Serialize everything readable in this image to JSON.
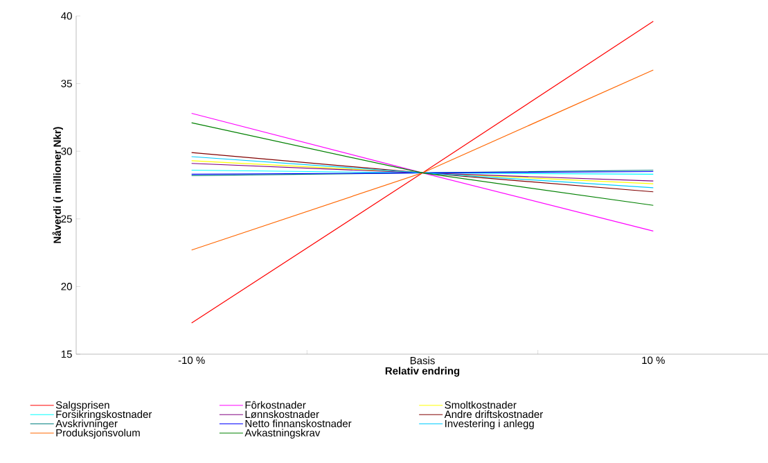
{
  "chart_data": {
    "type": "line",
    "xlabel": "Relativ endring",
    "ylabel": "Nåverdi (i millioner Nkr)",
    "categories": [
      "-10 %",
      "Basis",
      "10 %"
    ],
    "ylim": [
      15,
      40
    ],
    "yticks": [
      15,
      20,
      25,
      30,
      35,
      40
    ],
    "grid": false,
    "legend": "bottom",
    "marker": "none",
    "line_style": "solid",
    "series": [
      {
        "name": "Salgsprisen",
        "color": "#ff0000",
        "values": [
          17.3,
          28.4,
          39.6
        ]
      },
      {
        "name": "Fôrkostnader",
        "color": "#ff00ff",
        "values": [
          32.8,
          28.4,
          24.1
        ]
      },
      {
        "name": "Smoltkostnader",
        "color": "#ffff00",
        "values": [
          29.3,
          28.4,
          27.6
        ]
      },
      {
        "name": "Forsikringskostnader",
        "color": "#00ffff",
        "values": [
          28.6,
          28.4,
          28.3
        ]
      },
      {
        "name": "Lønnskostnader",
        "color": "#800080",
        "values": [
          29.1,
          28.4,
          27.8
        ]
      },
      {
        "name": "Andre driftskostnader",
        "color": "#800000",
        "values": [
          29.9,
          28.4,
          27.0
        ]
      },
      {
        "name": "Avskrivninger",
        "color": "#008080",
        "values": [
          28.2,
          28.4,
          28.6
        ]
      },
      {
        "name": "Netto finnanskostnader",
        "color": "#0000ff",
        "values": [
          28.3,
          28.4,
          28.5
        ]
      },
      {
        "name": "Investering i anlegg",
        "color": "#00ccff",
        "values": [
          29.6,
          28.4,
          27.3
        ]
      },
      {
        "name": "Produksjonsvolum",
        "color": "#ff6600",
        "values": [
          22.7,
          28.4,
          36.0
        ]
      },
      {
        "name": "Avkastningskrav",
        "color": "#008000",
        "values": [
          32.1,
          28.4,
          26.0
        ]
      }
    ]
  }
}
